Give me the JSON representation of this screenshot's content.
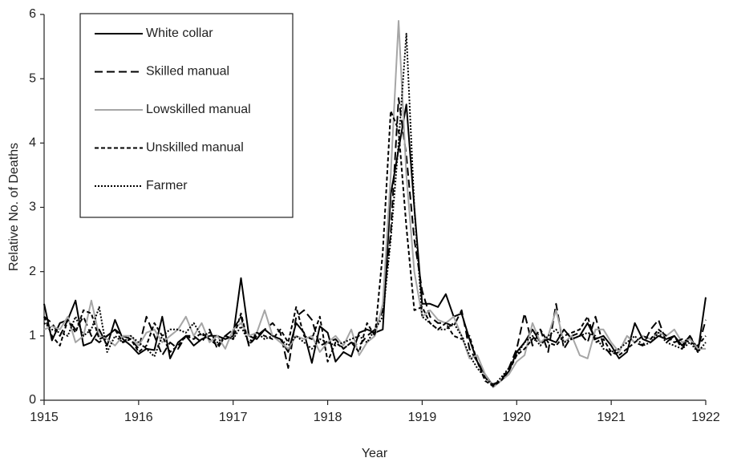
{
  "chart_data": {
    "type": "line",
    "xlabel": "Year",
    "ylabel": "Relative No. of Deaths",
    "xlim": [
      1915,
      1922
    ],
    "xticks": [
      1915,
      1916,
      1917,
      1918,
      1919,
      1920,
      1921,
      1922
    ],
    "ylim": [
      0,
      6
    ],
    "yticks": [
      0,
      1,
      2,
      3,
      4,
      5,
      6
    ],
    "grid": false,
    "legend": "upper left",
    "x": [
      1915,
      1915.083,
      1915.167,
      1915.25,
      1915.333,
      1915.417,
      1915.5,
      1915.583,
      1915.667,
      1915.75,
      1915.833,
      1915.917,
      1916,
      1916.083,
      1916.167,
      1916.25,
      1916.333,
      1916.417,
      1916.5,
      1916.583,
      1916.667,
      1916.75,
      1916.833,
      1916.917,
      1917,
      1917.083,
      1917.167,
      1917.25,
      1917.333,
      1917.417,
      1917.5,
      1917.583,
      1917.667,
      1917.75,
      1917.833,
      1917.917,
      1918,
      1918.083,
      1918.167,
      1918.25,
      1918.333,
      1918.417,
      1918.5,
      1918.583,
      1918.667,
      1918.75,
      1918.833,
      1918.917,
      1919,
      1919.083,
      1919.167,
      1919.25,
      1919.333,
      1919.417,
      1919.5,
      1919.583,
      1919.667,
      1919.75,
      1919.833,
      1919.917,
      1920,
      1920.083,
      1920.167,
      1920.25,
      1920.333,
      1920.417,
      1920.5,
      1920.583,
      1920.667,
      1920.75,
      1920.833,
      1920.917,
      1921,
      1921.083,
      1921.167,
      1921.25,
      1921.333,
      1921.417,
      1921.5,
      1921.583,
      1921.667,
      1921.75,
      1921.833,
      1921.917,
      1922
    ],
    "series": [
      {
        "name": "White collar",
        "color": "#000000",
        "linestyle": "solid",
        "values": [
          1.5,
          0.93,
          1.2,
          1.25,
          1.55,
          0.85,
          0.9,
          1.1,
          0.85,
          1.25,
          0.95,
          0.85,
          0.72,
          0.8,
          0.78,
          1.3,
          0.65,
          0.9,
          1.0,
          0.85,
          0.95,
          1.0,
          1.0,
          0.95,
          1.0,
          1.9,
          1.0,
          0.95,
          1.1,
          1.0,
          0.95,
          0.75,
          1.2,
          1.05,
          0.58,
          1.15,
          1.05,
          0.6,
          0.75,
          0.68,
          1.05,
          1.1,
          1.05,
          1.1,
          3.2,
          3.9,
          4.6,
          3.0,
          1.5,
          1.5,
          1.45,
          1.65,
          1.3,
          1.35,
          0.95,
          0.6,
          0.4,
          0.22,
          0.3,
          0.45,
          0.75,
          0.9,
          1.1,
          0.9,
          0.95,
          0.9,
          1.1,
          0.95,
          1.0,
          1.2,
          0.95,
          1.0,
          0.85,
          0.65,
          0.75,
          1.2,
          0.95,
          0.9,
          1.0,
          0.95,
          1.0,
          0.85,
          1.0,
          0.75,
          1.6
        ]
      },
      {
        "name": "Skilled manual",
        "color": "#000000",
        "linestyle": "long-dash",
        "values": [
          1.3,
          1.2,
          1.0,
          1.25,
          1.1,
          1.3,
          1.0,
          0.9,
          1.0,
          1.1,
          1.0,
          0.95,
          0.8,
          1.3,
          1.0,
          0.7,
          0.9,
          0.8,
          1.0,
          1.0,
          0.9,
          1.1,
          0.8,
          1.0,
          1.1,
          1.3,
          0.85,
          1.0,
          1.1,
          1.2,
          1.05,
          0.5,
          1.3,
          1.4,
          1.25,
          0.85,
          0.9,
          0.95,
          0.8,
          0.9,
          0.85,
          1.0,
          1.1,
          1.4,
          2.6,
          4.7,
          3.8,
          2.5,
          1.7,
          1.3,
          1.2,
          1.2,
          1.15,
          1.4,
          0.8,
          0.6,
          0.35,
          0.25,
          0.3,
          0.5,
          0.8,
          1.35,
          0.85,
          1.1,
          0.75,
          1.5,
          0.8,
          1.0,
          1.05,
          0.9,
          1.3,
          0.85,
          0.7,
          0.75,
          1.0,
          0.9,
          0.85,
          1.1,
          1.25,
          0.9,
          1.0,
          0.8,
          1.0,
          0.8,
          1.25
        ]
      },
      {
        "name": "Lowskilled manual",
        "color": "#a6a6a6",
        "linestyle": "solid",
        "values": [
          1.1,
          1.15,
          1.1,
          1.3,
          0.9,
          1.0,
          1.55,
          1.0,
          0.95,
          0.85,
          1.0,
          1.0,
          0.85,
          1.05,
          1.1,
          0.9,
          1.0,
          1.1,
          1.3,
          1.0,
          1.2,
          0.9,
          1.0,
          0.8,
          1.1,
          1.2,
          1.0,
          1.05,
          1.4,
          1.0,
          0.9,
          0.8,
          1.0,
          0.95,
          1.0,
          0.75,
          0.9,
          1.0,
          0.85,
          1.1,
          0.7,
          0.9,
          1.0,
          1.5,
          3.5,
          5.9,
          3.5,
          2.0,
          1.3,
          1.4,
          1.25,
          1.2,
          1.3,
          1.0,
          0.65,
          0.7,
          0.4,
          0.2,
          0.3,
          0.4,
          0.6,
          0.7,
          1.2,
          0.9,
          1.0,
          1.4,
          0.9,
          1.0,
          0.7,
          0.65,
          1.1,
          1.1,
          0.9,
          0.75,
          1.0,
          0.9,
          1.0,
          0.95,
          1.05,
          1.0,
          1.1,
          0.9,
          0.95,
          0.8,
          0.8
        ]
      },
      {
        "name": "Unskilled manual",
        "color": "#000000",
        "linestyle": "dash",
        "values": [
          1.3,
          1.0,
          0.85,
          1.25,
          1.05,
          1.4,
          1.35,
          0.95,
          1.0,
          1.1,
          0.9,
          0.95,
          0.75,
          0.85,
          1.2,
          1.0,
          0.75,
          0.85,
          1.0,
          0.95,
          1.05,
          0.95,
          0.85,
          1.0,
          0.95,
          1.35,
          0.85,
          1.05,
          1.0,
          0.95,
          1.1,
          0.9,
          1.45,
          1.0,
          0.95,
          1.3,
          0.6,
          0.9,
          0.8,
          0.9,
          0.75,
          1.2,
          1.0,
          2.3,
          4.5,
          4.2,
          2.7,
          1.4,
          1.45,
          1.2,
          1.1,
          1.2,
          1.0,
          0.95,
          1.0,
          0.6,
          0.3,
          0.22,
          0.3,
          0.45,
          0.7,
          0.8,
          0.95,
          1.1,
          0.9,
          0.85,
          1.0,
          1.05,
          1.1,
          1.3,
          0.9,
          0.95,
          0.75,
          0.7,
          0.8,
          0.9,
          1.0,
          0.95,
          1.1,
          1.0,
          0.9,
          0.95,
          0.9,
          0.85,
          1.0
        ]
      },
      {
        "name": "Farmer",
        "color": "#000000",
        "linestyle": "dotted",
        "values": [
          1.2,
          1.1,
          1.05,
          1.0,
          1.3,
          1.0,
          1.1,
          1.45,
          0.75,
          1.0,
          0.9,
          1.0,
          0.9,
          0.8,
          0.68,
          1.0,
          1.1,
          1.1,
          1.05,
          1.2,
          1.0,
          1.05,
          0.9,
          1.0,
          0.95,
          1.15,
          0.9,
          1.05,
          0.95,
          1.0,
          0.95,
          0.85,
          1.0,
          0.9,
          0.8,
          0.95,
          0.9,
          0.85,
          0.9,
          0.95,
          1.0,
          0.9,
          1.1,
          1.3,
          2.5,
          4.0,
          5.7,
          3.0,
          1.3,
          1.2,
          1.1,
          1.1,
          1.2,
          1.0,
          0.7,
          0.5,
          0.35,
          0.22,
          0.35,
          0.5,
          0.7,
          0.9,
          1.0,
          0.85,
          1.0,
          1.1,
          0.9,
          0.95,
          1.0,
          1.05,
          1.0,
          0.8,
          0.75,
          0.8,
          0.9,
          1.0,
          0.85,
          0.9,
          1.05,
          0.9,
          0.85,
          0.8,
          0.9,
          0.75,
          0.9
        ]
      }
    ]
  }
}
